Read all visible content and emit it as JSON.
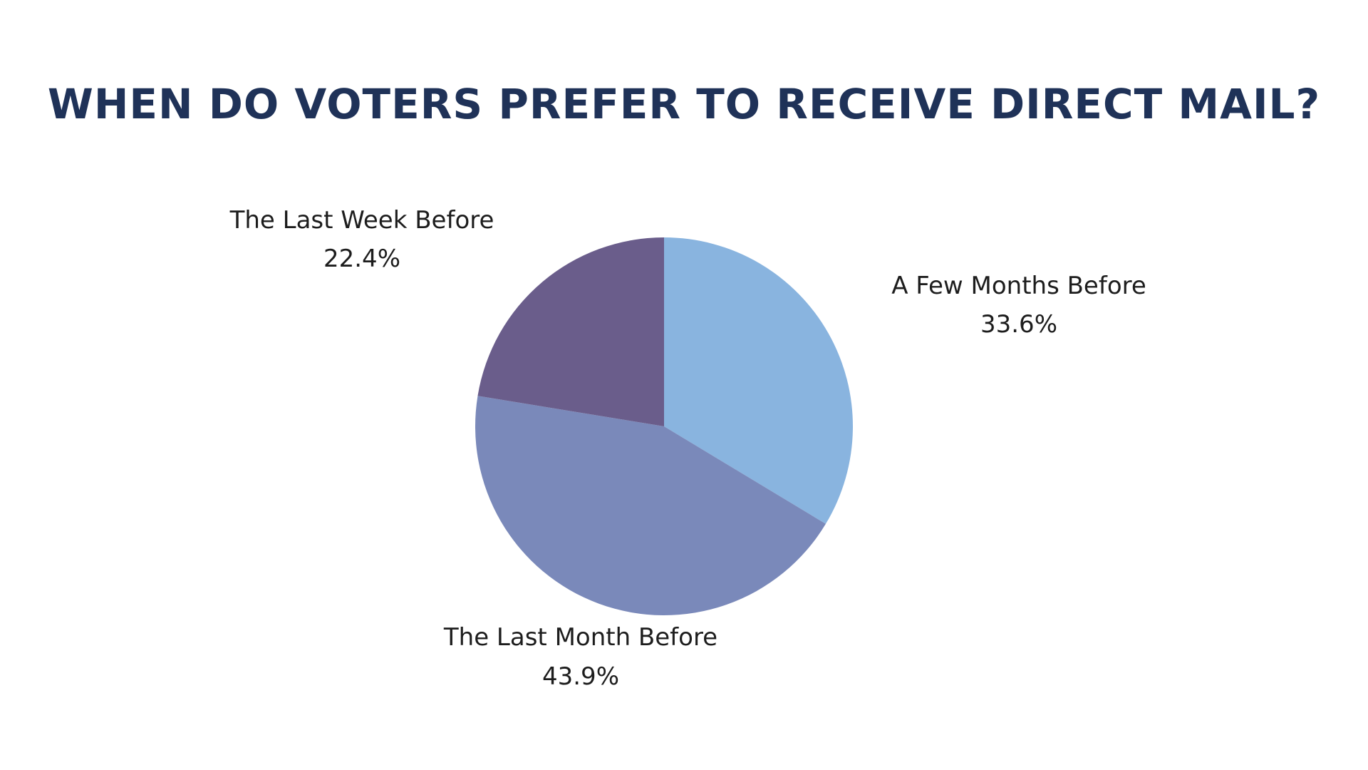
{
  "chart_data": {
    "type": "pie",
    "title": "WHEN DO VOTERS PREFER TO RECEIVE DIRECT MAIL?",
    "slices": [
      {
        "label": "A Few Months Before",
        "value": 33.6,
        "value_label": "33.6%",
        "color": "#89b4df"
      },
      {
        "label": "The Last Month Before",
        "value": 43.9,
        "value_label": "43.9%",
        "color": "#7a89ba"
      },
      {
        "label": "The Last Week Before",
        "value": 22.4,
        "value_label": "22.4%",
        "color": "#6a5d8b"
      }
    ],
    "start_angle": "12 o'clock",
    "direction": "clockwise",
    "legend": "none",
    "labels": "outside"
  }
}
